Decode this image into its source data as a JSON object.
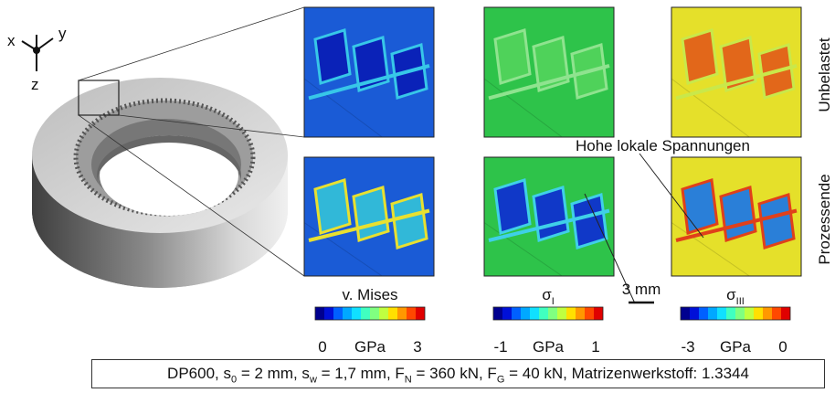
{
  "axes": {
    "x": "x",
    "y": "y",
    "z": "z"
  },
  "rows": [
    "Unbelastet",
    "Prozessende"
  ],
  "annotation": "Hohe lokale Spannungen",
  "scale_bar": "3 mm",
  "colorbars": [
    {
      "title": "v. Mises",
      "subscript": null,
      "ticks": [
        "0",
        "GPa",
        "3"
      ]
    },
    {
      "title": "σ",
      "subscript": "I",
      "ticks": [
        "-1",
        "GPa",
        "1"
      ]
    },
    {
      "title": "σ",
      "subscript": "III",
      "ticks": [
        "-3",
        "GPa",
        "0"
      ]
    }
  ],
  "caption": [
    "DP600, s",
    "0",
    " = 2 mm, s",
    "w",
    " = 1,7 mm, F",
    "N",
    " = 360 kN, F",
    "G",
    " = 40 kN, Matrizenwerkstoff: 1.3344"
  ]
}
